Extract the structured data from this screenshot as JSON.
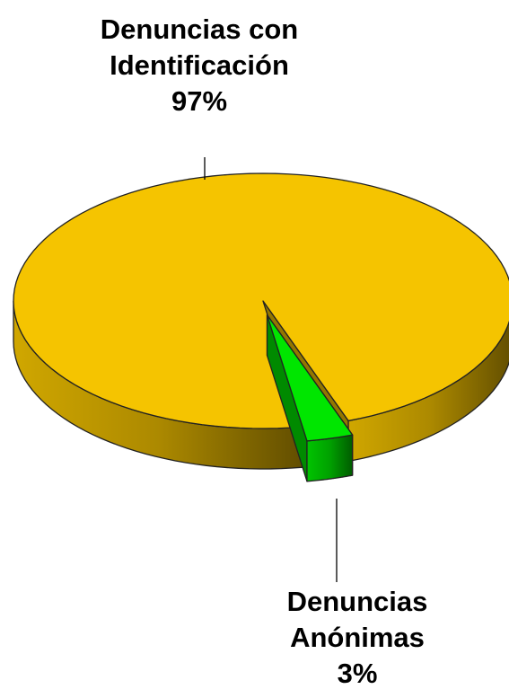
{
  "chart_data": {
    "type": "pie3d",
    "categories": [
      "Denuncias con Identificación",
      "Denuncias Anónimas"
    ],
    "values": [
      97,
      3
    ],
    "value_labels": [
      "97%",
      "3%"
    ],
    "colors": [
      "#f5c400",
      "#00e600"
    ]
  }
}
